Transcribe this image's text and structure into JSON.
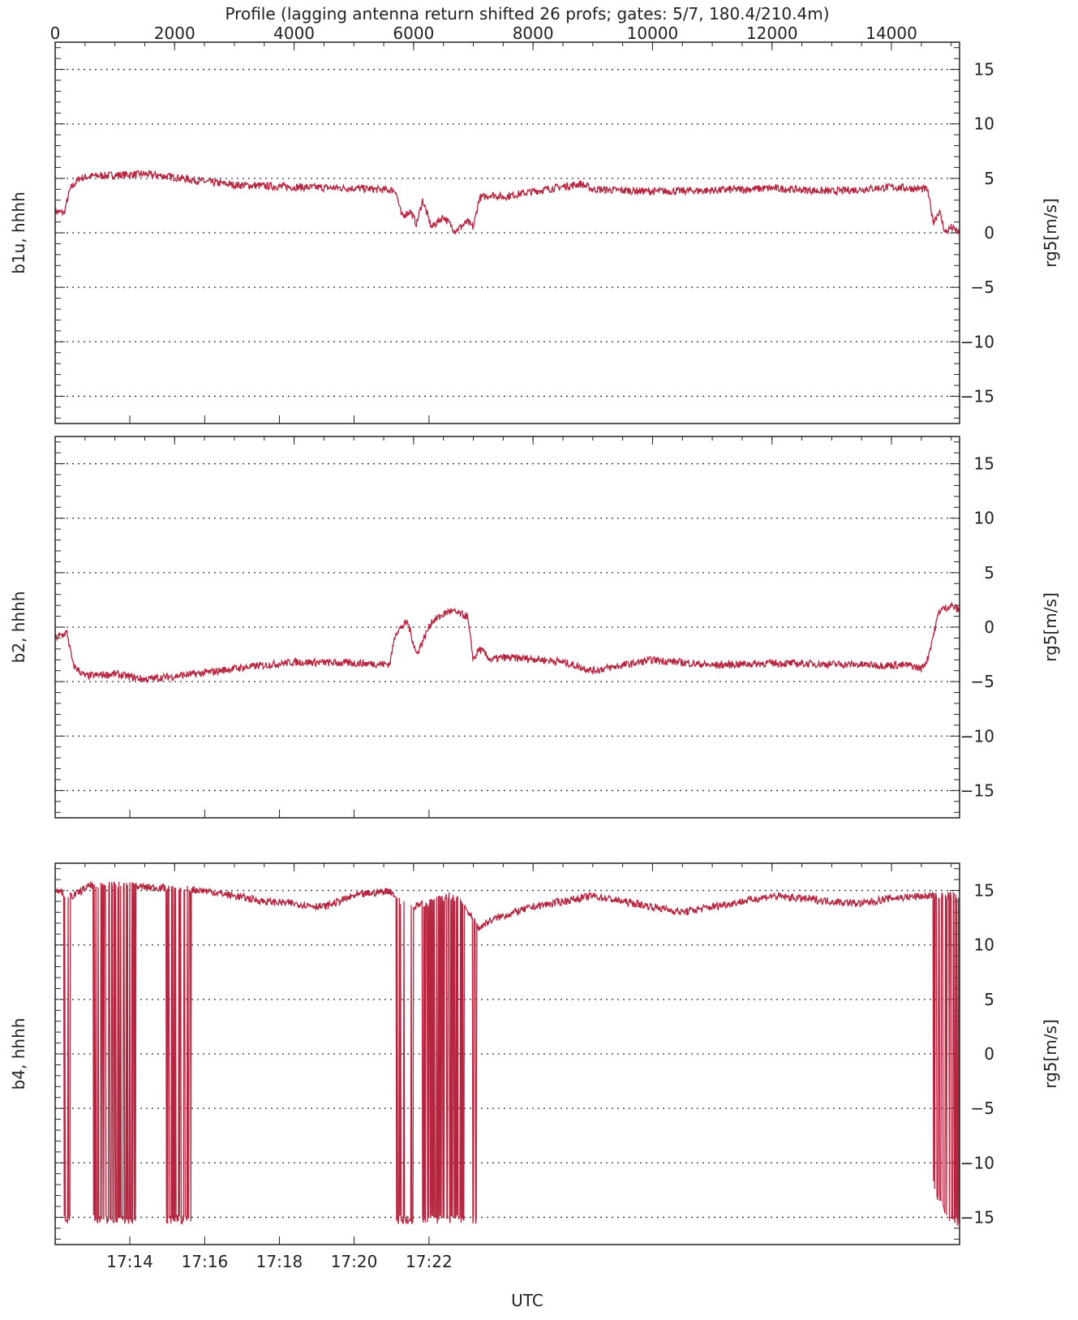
{
  "colors": {
    "series": "#b5253f",
    "axis": "#222222",
    "grid": "#333333",
    "background": "#ffffff"
  },
  "chart_data": {
    "type": "line",
    "title": "Profile (lagging antenna return shifted 26 profs; gates: 5/7, 180.4/210.4m)",
    "top_axis": {
      "label": "Profile (lagging antenna return shifted 26 profs; gates: 5/7, 180.4/210.4m)",
      "range": [
        0,
        15140
      ],
      "ticks": [
        0,
        2000,
        4000,
        6000,
        8000,
        10000,
        12000,
        14000
      ],
      "tick_labels": [
        "0",
        "2000",
        "4000",
        "6000",
        "8000",
        "10000",
        "12000",
        "14000"
      ]
    },
    "bottom_axis": {
      "label": "UTC",
      "range_hours": [
        17.2,
        17.6033
      ],
      "ticks_hours": [
        17.2333,
        17.2667,
        17.3,
        17.3333,
        17.3667
      ],
      "tick_labels": [
        "17:14",
        "17:16",
        "17:18",
        "17:20",
        "17:22"
      ]
    },
    "grid": {
      "y_dotted": true,
      "y_values": [
        -15,
        -10,
        -5,
        0,
        5,
        10,
        15
      ]
    },
    "panels": [
      {
        "left_label": "b1u, hhhh",
        "right_label": "rg5[m/s]",
        "ylim": [
          -17.5,
          17.5
        ],
        "yticks": [
          -15,
          -10,
          -5,
          0,
          5,
          10,
          15
        ],
        "ytick_labels": [
          "−15",
          "−10",
          "−5",
          "0",
          "5",
          "10",
          "15"
        ],
        "profile": [
          0,
          150,
          250,
          400,
          600,
          1000,
          1500,
          2000,
          2500,
          3000,
          4000,
          5000,
          5700,
          5800,
          5950,
          6050,
          6150,
          6300,
          6500,
          6700,
          6900,
          7000,
          7100,
          7300,
          7500,
          8000,
          8800,
          9000,
          10000,
          11000,
          12000,
          13000,
          14000,
          14600,
          14700,
          14800,
          14900,
          15000,
          15140
        ],
        "values": [
          2.0,
          1.8,
          4.0,
          5.0,
          5.2,
          5.3,
          5.4,
          5.1,
          4.7,
          4.4,
          4.2,
          4.1,
          3.9,
          1.5,
          2.0,
          0.8,
          3.0,
          0.5,
          1.5,
          0.2,
          1.0,
          0.5,
          3.2,
          3.5,
          3.3,
          3.8,
          4.5,
          4.0,
          3.8,
          3.9,
          4.1,
          3.8,
          4.2,
          4.0,
          1.0,
          2.0,
          0.0,
          0.5,
          0.0
        ],
        "noise_amplitude": 0.35
      },
      {
        "left_label": "b2, hhhh",
        "right_label": "rg5[m/s]",
        "ylim": [
          -17.5,
          17.5
        ],
        "yticks": [
          -15,
          -10,
          -5,
          0,
          5,
          10,
          15
        ],
        "ytick_labels": [
          "−15",
          "−10",
          "−5",
          "0",
          "5",
          "10",
          "15"
        ],
        "profile": [
          0,
          200,
          300,
          500,
          1000,
          1500,
          2000,
          2500,
          3000,
          4000,
          5000,
          5600,
          5700,
          5900,
          6050,
          6300,
          6600,
          6900,
          7000,
          7100,
          7300,
          7500,
          8000,
          8500,
          9000,
          9500,
          10000,
          11000,
          12000,
          13000,
          14000,
          14300,
          14500,
          14600,
          14800,
          15000,
          15140
        ],
        "values": [
          -1.0,
          -0.5,
          -3.5,
          -4.5,
          -4.3,
          -4.8,
          -4.5,
          -4.2,
          -3.8,
          -3.2,
          -3.3,
          -3.4,
          -0.5,
          0.5,
          -2.5,
          0.5,
          1.5,
          1.0,
          -3.0,
          -2.0,
          -3.0,
          -2.8,
          -2.9,
          -3.2,
          -4.0,
          -3.5,
          -3.0,
          -3.5,
          -3.3,
          -3.4,
          -3.5,
          -3.5,
          -3.8,
          -3.0,
          1.5,
          2.0,
          1.5
        ],
        "noise_amplitude": 0.35
      },
      {
        "left_label": "b4, hhhh",
        "right_label": "rg5[m/s]",
        "ylim": [
          -17.5,
          17.5
        ],
        "yticks": [
          -15,
          -10,
          -5,
          0,
          5,
          10,
          15
        ],
        "ytick_labels": [
          "−15",
          "−10",
          "−5",
          "0",
          "5",
          "10",
          "15"
        ],
        "profile": [
          0,
          300,
          600,
          1000,
          1500,
          2000,
          2500,
          3000,
          3500,
          4000,
          4500,
          5000,
          5600,
          5800,
          6000,
          6600,
          6800,
          7100,
          7200,
          7400,
          8000,
          8500,
          9000,
          9500,
          10000,
          10500,
          11000,
          12000,
          13000,
          13500,
          14000,
          14600,
          15140
        ],
        "values": [
          15.0,
          14.5,
          15.5,
          15.5,
          15.3,
          15.2,
          15.0,
          14.5,
          14.0,
          13.8,
          13.5,
          14.5,
          15.0,
          14.0,
          13.5,
          14.5,
          14.0,
          11.5,
          12.0,
          12.5,
          13.5,
          14.0,
          14.5,
          14.0,
          13.5,
          13.0,
          13.5,
          14.5,
          14.0,
          13.8,
          14.3,
          14.5,
          14.5
        ],
        "noise_amplitude": 0.35,
        "aliased_low_value": -15.2,
        "aliased_ranges": [
          [
            150,
            280
          ],
          [
            620,
            1350
          ],
          [
            1850,
            2280
          ],
          [
            5700,
            6000
          ],
          [
            6150,
            6850
          ],
          [
            6950,
            7050
          ],
          [
            14700,
            15140
          ]
        ],
        "aliased_low_profile": [
          14700,
          14800,
          14950,
          15140
        ],
        "aliased_low_values": [
          -12.0,
          -13.5,
          -15.0,
          -15.5
        ]
      }
    ]
  }
}
